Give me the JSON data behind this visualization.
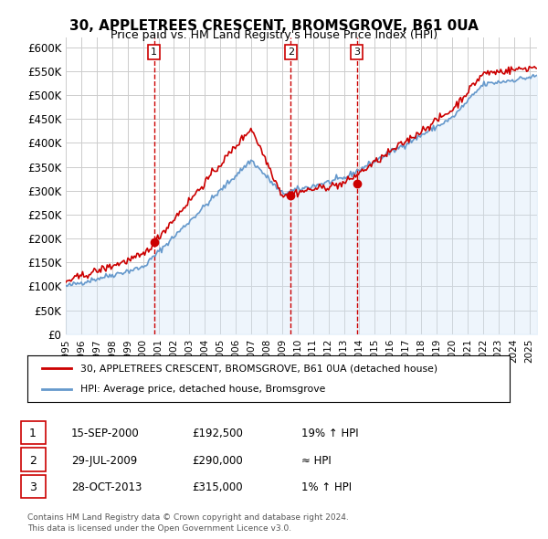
{
  "title": "30, APPLETREES CRESCENT, BROMSGROVE, B61 0UA",
  "subtitle": "Price paid vs. HM Land Registry's House Price Index (HPI)",
  "ylim": [
    0,
    620000
  ],
  "yticks": [
    0,
    50000,
    100000,
    150000,
    200000,
    250000,
    300000,
    350000,
    400000,
    450000,
    500000,
    550000,
    600000
  ],
  "ytick_labels": [
    "£0",
    "£50K",
    "£100K",
    "£150K",
    "£200K",
    "£250K",
    "£300K",
    "£350K",
    "£400K",
    "£450K",
    "£500K",
    "£550K",
    "£600K"
  ],
  "sale_dates": [
    2000.71,
    2009.57,
    2013.83
  ],
  "sale_prices": [
    192500,
    290000,
    315000
  ],
  "sale_labels": [
    "1",
    "2",
    "3"
  ],
  "legend_entries": [
    "30, APPLETREES CRESCENT, BROMSGROVE, B61 0UA (detached house)",
    "HPI: Average price, detached house, Bromsgrove"
  ],
  "property_line_color": "#cc0000",
  "hpi_line_color": "#6699cc",
  "hpi_fill_color": "#d0e4f7",
  "table_rows": [
    [
      "1",
      "15-SEP-2000",
      "£192,500",
      "19% ↑ HPI"
    ],
    [
      "2",
      "29-JUL-2009",
      "£290,000",
      "≈ HPI"
    ],
    [
      "3",
      "28-OCT-2013",
      "£315,000",
      "1% ↑ HPI"
    ]
  ],
  "footer_text": "Contains HM Land Registry data © Crown copyright and database right 2024.\nThis data is licensed under the Open Government Licence v3.0.",
  "vline_color": "#cc0000",
  "dot_color": "#cc0000",
  "background_color": "#ffffff",
  "grid_color": "#cccccc"
}
